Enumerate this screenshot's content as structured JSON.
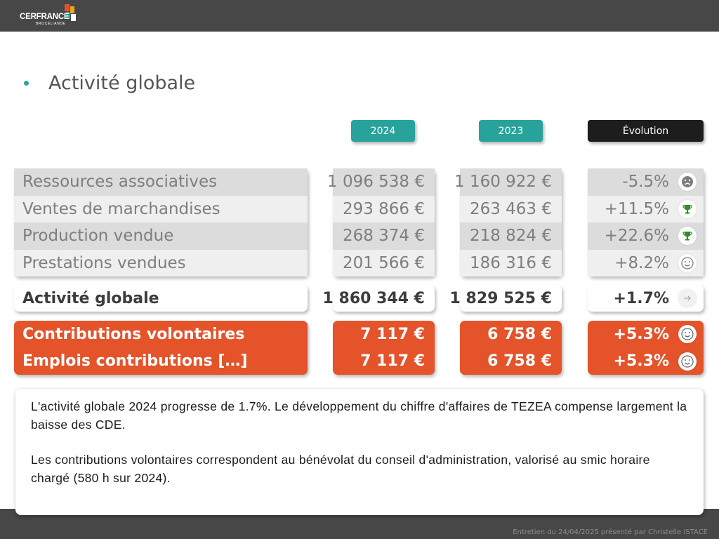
{
  "header": {
    "logo": {
      "name": "CERFRANCE",
      "sub": "BROCÉLIANDE",
      "colors": [
        "#e4532a",
        "#f1a31c",
        "#27a39b",
        "#ffffff"
      ]
    }
  },
  "slide": {
    "title": "Activité globale",
    "columns": {
      "y2024": "2024",
      "y2023": "2023",
      "evolution": "Évolution"
    },
    "rows": [
      {
        "label": "Ressources associatives",
        "v2024": "1 096 538 €",
        "v2023": "1 160 922 €",
        "evolution": "-5.5%",
        "icon": "sad-face-icon"
      },
      {
        "label": "Ventes de marchandises",
        "v2024": "293 866 €",
        "v2023": "263 463 €",
        "evolution": "+11.5%",
        "icon": "trophy-icon"
      },
      {
        "label": "Production vendue",
        "v2024": "268 374 €",
        "v2023": "218 824 €",
        "evolution": "+22.6%",
        "icon": "trophy-icon"
      },
      {
        "label": "Prestations vendues",
        "v2024": "201 566 €",
        "v2023": "186 316 €",
        "evolution": "+8.2%",
        "icon": "smile-face-icon"
      }
    ],
    "total": {
      "label": "Activité globale",
      "v2024": "1 860 344 €",
      "v2023": "1 829 525 €",
      "evolution": "+1.7%",
      "icon": "arrow-right-icon"
    },
    "contributions": [
      {
        "label": "Contributions volontaires",
        "v2024": "7 117 €",
        "v2023": "6 758 €",
        "evolution": "+5.3%",
        "icon": "smile-face-icon"
      },
      {
        "label": "Emplois contributions […]",
        "v2024": "7 117 €",
        "v2023": "6 758 €",
        "evolution": "+5.3%",
        "icon": "smile-face-icon"
      }
    ],
    "comment": {
      "p1": "L'activité globale 2024 progresse de 1.7%. Le développement du chiffre d'affaires de TEZEA compense largement la baisse des CDE.",
      "p2": "Les contributions volontaires correspondent au bénévolat du conseil d'administration, valorisé au smic horaire chargé (580 h sur 2024)."
    }
  },
  "footer": {
    "text": "Entretien du 24/04/2025 présenté par Christelle ISTACE"
  },
  "colors": {
    "teal": "#27a39b",
    "orange": "#e4532a",
    "dark": "#474747",
    "header_dark": "#1d1d1d"
  }
}
